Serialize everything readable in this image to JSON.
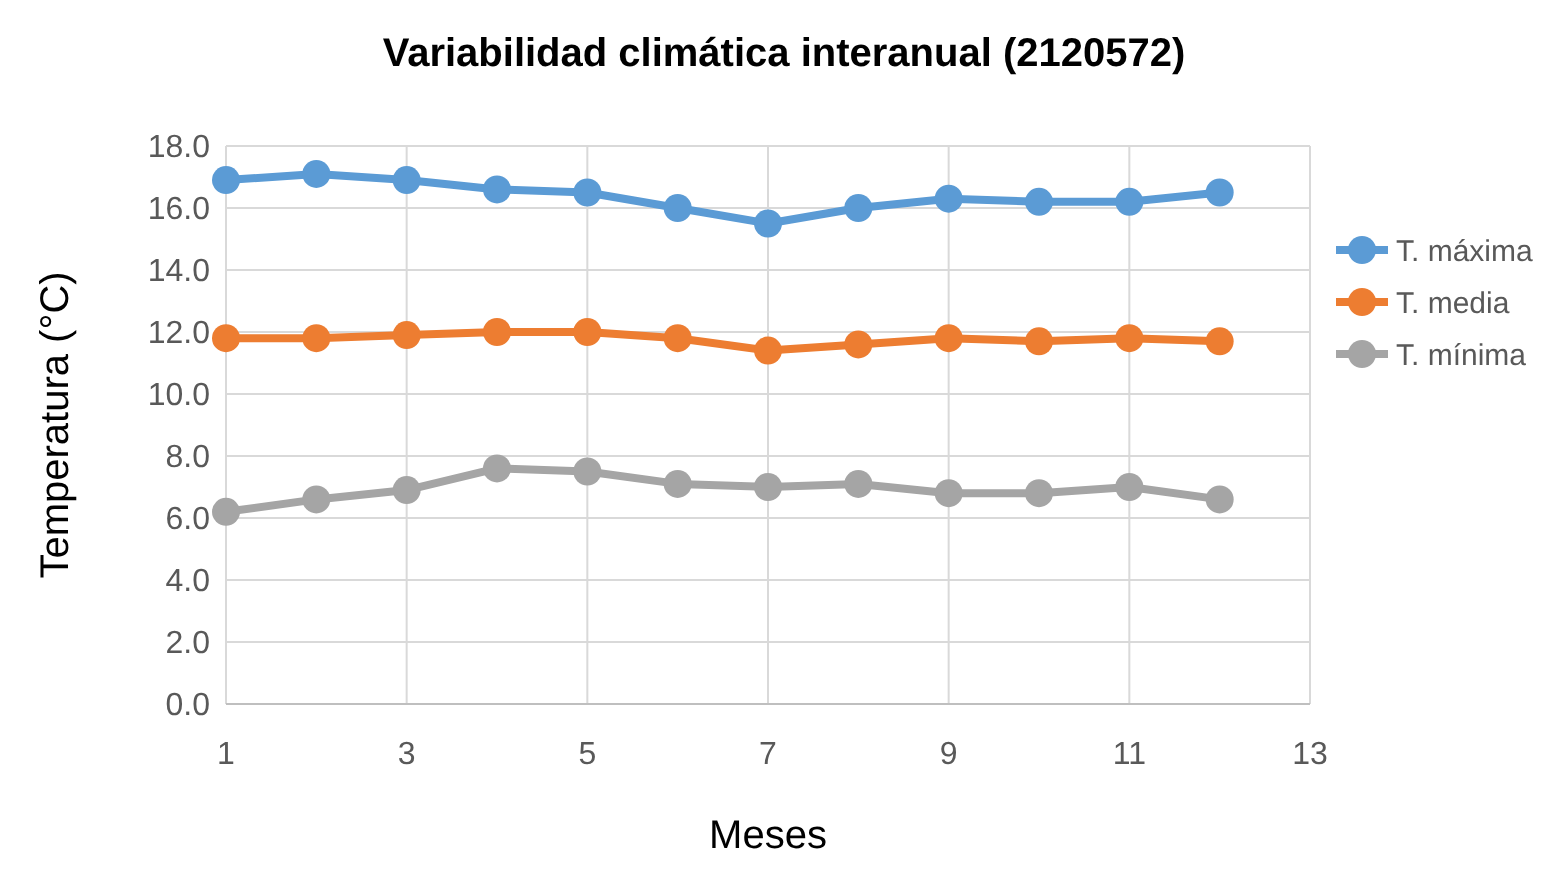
{
  "chart_data": {
    "type": "line",
    "title": "Variabilidad climática interanual (2120572)",
    "xlabel": "Meses",
    "ylabel": "Temperatura (°C)",
    "x": [
      1,
      2,
      3,
      4,
      5,
      6,
      7,
      8,
      9,
      10,
      11,
      12
    ],
    "series": [
      {
        "name": "T. máxima",
        "color": "#5b9bd5",
        "values": [
          16.9,
          17.1,
          16.9,
          16.6,
          16.5,
          16.0,
          15.5,
          16.0,
          16.3,
          16.2,
          16.2,
          16.5
        ]
      },
      {
        "name": "T. media",
        "color": "#ed7d31",
        "values": [
          11.8,
          11.8,
          11.9,
          12.0,
          12.0,
          11.8,
          11.4,
          11.6,
          11.8,
          11.7,
          11.8,
          11.7
        ]
      },
      {
        "name": "T. mínima",
        "color": "#a5a5a5",
        "values": [
          6.2,
          6.6,
          6.9,
          7.6,
          7.5,
          7.1,
          7.0,
          7.1,
          6.8,
          6.8,
          7.0,
          6.6
        ]
      }
    ],
    "xlim": [
      1,
      13
    ],
    "xticks": [
      1,
      3,
      5,
      7,
      9,
      11,
      13
    ],
    "ylim": [
      0,
      18
    ],
    "yticks": [
      {
        "value": 0,
        "label": "0.0"
      },
      {
        "value": 2,
        "label": "2.0"
      },
      {
        "value": 4,
        "label": "4.0"
      },
      {
        "value": 6,
        "label": "6.0"
      },
      {
        "value": 8,
        "label": "8.0"
      },
      {
        "value": 10,
        "label": "10.0"
      },
      {
        "value": 12,
        "label": "12.0"
      },
      {
        "value": 14,
        "label": "14.0"
      },
      {
        "value": 16,
        "label": "16.0"
      },
      {
        "value": 18,
        "label": "18.0"
      }
    ],
    "grid": true,
    "legend": "right",
    "marker": "circle",
    "line_style": "solid"
  }
}
